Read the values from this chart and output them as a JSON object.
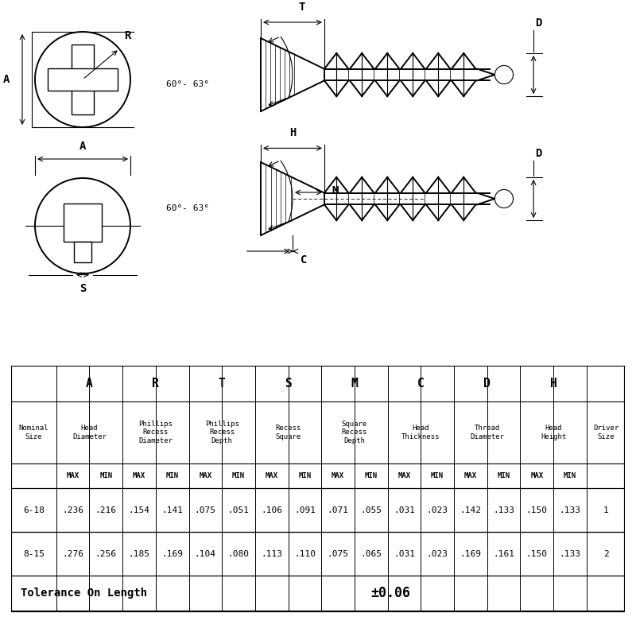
{
  "bg_color": "#ffffff",
  "table_data_row1_bg": "#cccccc",
  "table_data_row2_bg": "#ffffff",
  "data_rows": [
    [
      "6-18",
      ".236",
      ".216",
      ".154",
      ".141",
      ".075",
      ".051",
      ".106",
      ".091",
      ".071",
      ".055",
      ".031",
      ".023",
      ".142",
      ".133",
      ".150",
      ".133",
      "1"
    ],
    [
      "8-15",
      ".276",
      ".256",
      ".185",
      ".169",
      ".104",
      ".080",
      ".113",
      ".110",
      ".075",
      ".065",
      ".031",
      ".023",
      ".169",
      ".161",
      ".150",
      ".133",
      "2"
    ]
  ],
  "tolerance_text": "Tolerance On Length",
  "tolerance_value": "±0.06"
}
